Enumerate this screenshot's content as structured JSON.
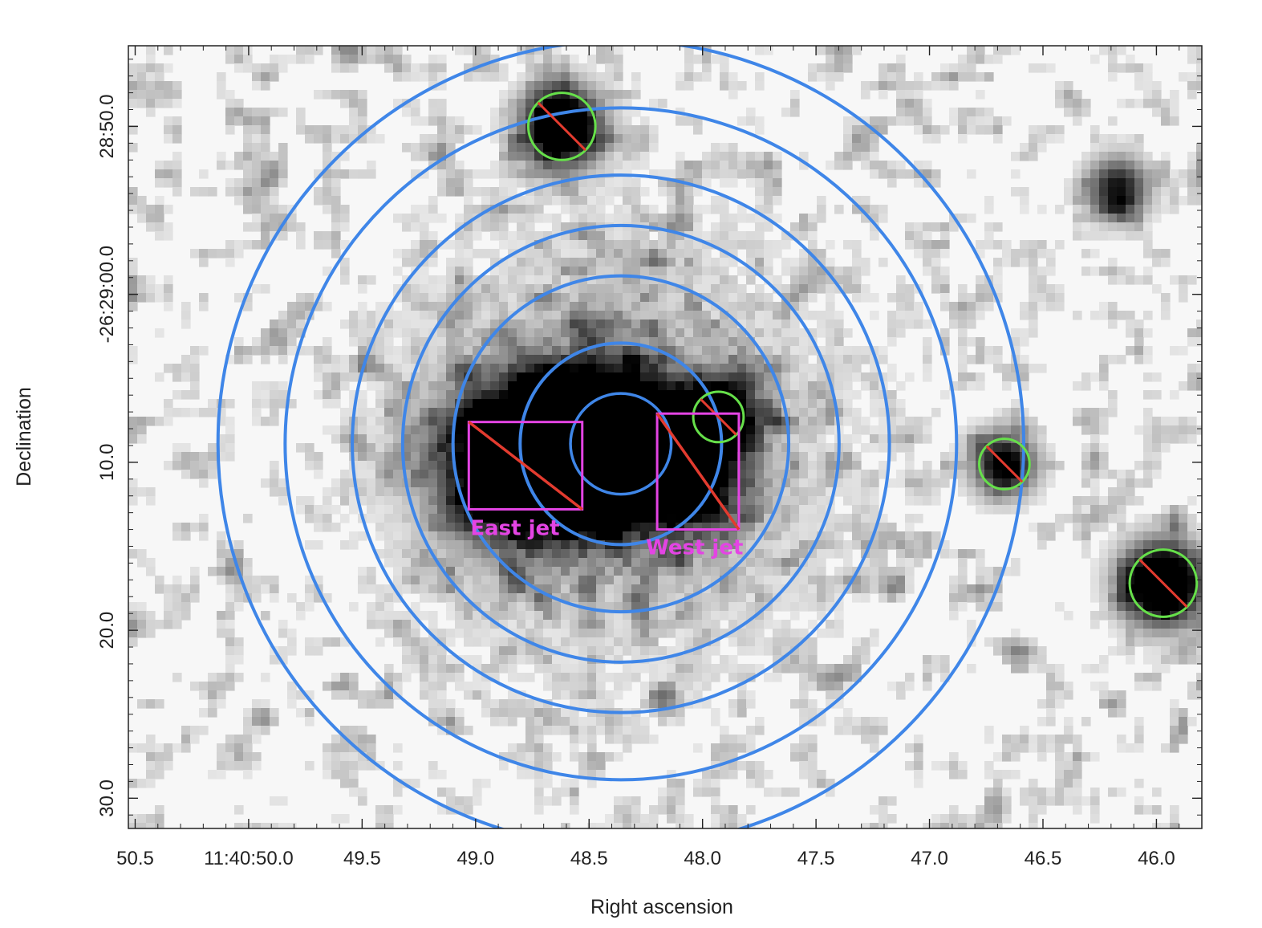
{
  "chart_data": {
    "type": "image",
    "description_axes": "sky image in equatorial coordinates",
    "xlabel": "Right ascension",
    "ylabel": "Declination",
    "x_ticks": [
      {
        "value": 50.5,
        "label": "50.5"
      },
      {
        "value": 50.0,
        "label": "11:40:50.0"
      },
      {
        "value": 49.5,
        "label": "49.5"
      },
      {
        "value": 49.0,
        "label": "49.0"
      },
      {
        "value": 48.5,
        "label": "48.5"
      },
      {
        "value": 48.0,
        "label": "48.0"
      },
      {
        "value": 47.5,
        "label": "47.5"
      },
      {
        "value": 47.0,
        "label": "47.0"
      },
      {
        "value": 46.5,
        "label": "46.5"
      },
      {
        "value": 46.0,
        "label": "46.0"
      }
    ],
    "y_ticks": [
      {
        "value": -10.0,
        "label": "28:50.0"
      },
      {
        "value": 0.0,
        "label": "-26:29:00.0"
      },
      {
        "value": 10.0,
        "label": "10.0"
      },
      {
        "value": 20.0,
        "label": "20.0"
      },
      {
        "value": 30.0,
        "label": "30.0"
      }
    ],
    "xlim": [
      50.53,
      45.8
    ],
    "ylim": [
      -14.8,
      31.8
    ],
    "x_direction": "decreasing to the right",
    "y_note": "arcseconds south of -26:29:00.0",
    "colormap": "inverted grayscale",
    "annuli": {
      "center": {
        "ra": 48.36,
        "dec": 8.9
      },
      "radii_arcsec": [
        3.0,
        6.0,
        10.0,
        13.0,
        16.0,
        20.0,
        24.0
      ],
      "color": "#3f86e8"
    },
    "excluded_sources": [
      {
        "ra": 48.62,
        "dec": -10.0,
        "radius_arcsec": 2.0
      },
      {
        "ra": 47.93,
        "dec": 7.3,
        "radius_arcsec": 1.5
      },
      {
        "ra": 46.67,
        "dec": 10.1,
        "radius_arcsec": 1.5
      },
      {
        "ra": 45.97,
        "dec": 17.2,
        "radius_arcsec": 2.0
      }
    ],
    "exclusion_circle_color": "#66e04a",
    "exclusion_slash_color": "#e33b2f",
    "jet_regions": [
      {
        "label": "East jet",
        "ra_range": [
          49.03,
          48.53
        ],
        "dec_range": [
          7.6,
          12.8
        ]
      },
      {
        "label": "West jet",
        "ra_range": [
          48.2,
          47.84
        ],
        "dec_range": [
          7.1,
          14.0
        ]
      }
    ],
    "jet_color": "#e444e4",
    "bright_emission": [
      {
        "ra": 48.36,
        "dec": 8.9,
        "strength": 1.0,
        "sigma_arcsec": 2.6
      },
      {
        "ra": 48.6,
        "dec": 9.6,
        "strength": 0.9,
        "sigma_arcsec": 3.0
      },
      {
        "ra": 48.85,
        "dec": 10.0,
        "strength": 0.75,
        "sigma_arcsec": 3.0
      },
      {
        "ra": 48.1,
        "dec": 10.3,
        "strength": 0.7,
        "sigma_arcsec": 2.6
      },
      {
        "ra": 48.62,
        "dec": -10.0,
        "strength": 0.95,
        "sigma_arcsec": 1.6
      },
      {
        "ra": 47.93,
        "dec": 7.3,
        "strength": 0.95,
        "sigma_arcsec": 1.4
      },
      {
        "ra": 46.67,
        "dec": 10.1,
        "strength": 0.7,
        "sigma_arcsec": 1.3
      },
      {
        "ra": 45.97,
        "dec": 17.2,
        "strength": 1.0,
        "sigma_arcsec": 1.7
      },
      {
        "ra": 46.17,
        "dec": -6.3,
        "strength": 0.6,
        "sigma_arcsec": 1.3
      }
    ]
  }
}
